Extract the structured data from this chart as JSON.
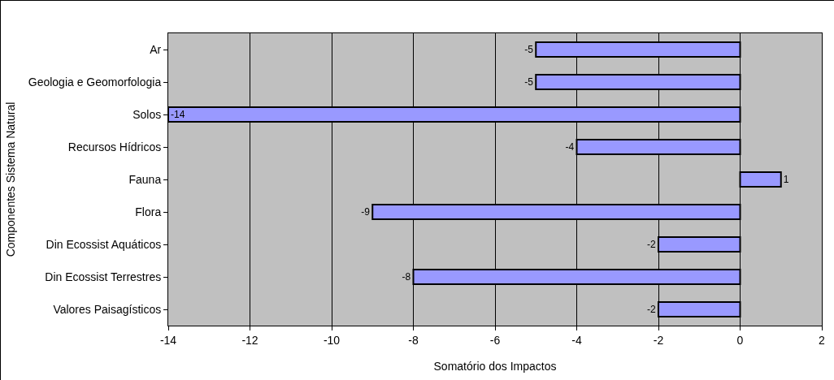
{
  "chart_data": {
    "type": "bar",
    "orientation": "horizontal",
    "xlabel": "Somatório dos Impactos",
    "ylabel": "Componentes Sistema Natural",
    "categories": [
      "Ar",
      "Geologia e Geomorfologia",
      "Solos",
      "Recursos Hídricos",
      "Fauna",
      "Flora",
      "Din Ecossist Aquáticos",
      "Din Ecossist Terrestres",
      "Valores Paisagísticos"
    ],
    "values": [
      -5,
      -5,
      -14,
      -4,
      1,
      -9,
      -2,
      -8,
      -2
    ],
    "color": "#9999ff",
    "xlim": [
      -14,
      2
    ],
    "xticks": [
      -14,
      -12,
      -10,
      -8,
      -6,
      -4,
      -2,
      0,
      2
    ],
    "grid": "x",
    "data_labels": true
  }
}
